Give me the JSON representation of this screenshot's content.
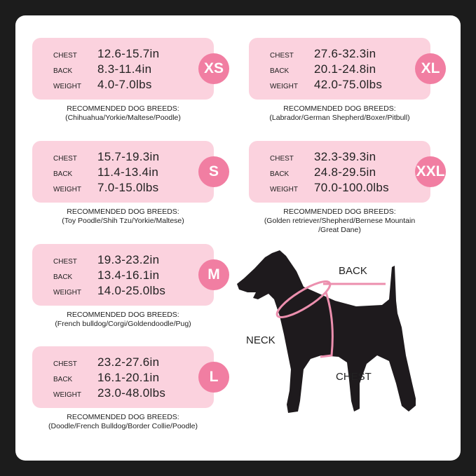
{
  "labels": {
    "chest": "CHEST",
    "back": "BACK",
    "weight": "WEIGHT",
    "recommended": "RECOMMENDED DOG BREEDS:"
  },
  "sizes": [
    {
      "size": "XS",
      "chest": "12.6-15.7in",
      "back": "8.3-11.4in",
      "weight": "4.0-7.0lbs",
      "breeds": "(Chihuahua/Yorkie/Maltese/Poodle)",
      "breeds2": ""
    },
    {
      "size": "S",
      "chest": "15.7-19.3in",
      "back": "11.4-13.4in",
      "weight": "7.0-15.0lbs",
      "breeds": "(Toy Poodle/Shih Tzu/Yorkie/Maltese)",
      "breeds2": ""
    },
    {
      "size": "M",
      "chest": "19.3-23.2in",
      "back": "13.4-16.1in",
      "weight": "14.0-25.0lbs",
      "breeds": "(French bulldog/Corgi/Goldendoodle/Pug)",
      "breeds2": ""
    },
    {
      "size": "L",
      "chest": "23.2-27.6in",
      "back": "16.1-20.1in",
      "weight": "23.0-48.0lbs",
      "breeds": "(Doodle/French Bulldog/Border Collie/Poodle)",
      "breeds2": ""
    },
    {
      "size": "XL",
      "chest": "27.6-32.3in",
      "back": "20.1-24.8in",
      "weight": "42.0-75.0lbs",
      "breeds": "(Labrador/German Shepherd/Boxer/Pitbull)",
      "breeds2": ""
    },
    {
      "size": "XXL",
      "chest": "32.3-39.3in",
      "back": "24.8-29.5in",
      "weight": "70.0-100.0lbs",
      "breeds": "(Golden retriever/Shepherd/Bernese Mountain",
      "breeds2": "/Great Dane)"
    }
  ],
  "diagram": {
    "back": "BACK",
    "neck": "NECK",
    "chest": "CHEST"
  },
  "colors": {
    "box": "#fbd2de",
    "badge": "#f17ea2",
    "silhouette": "#1e1a1d"
  }
}
